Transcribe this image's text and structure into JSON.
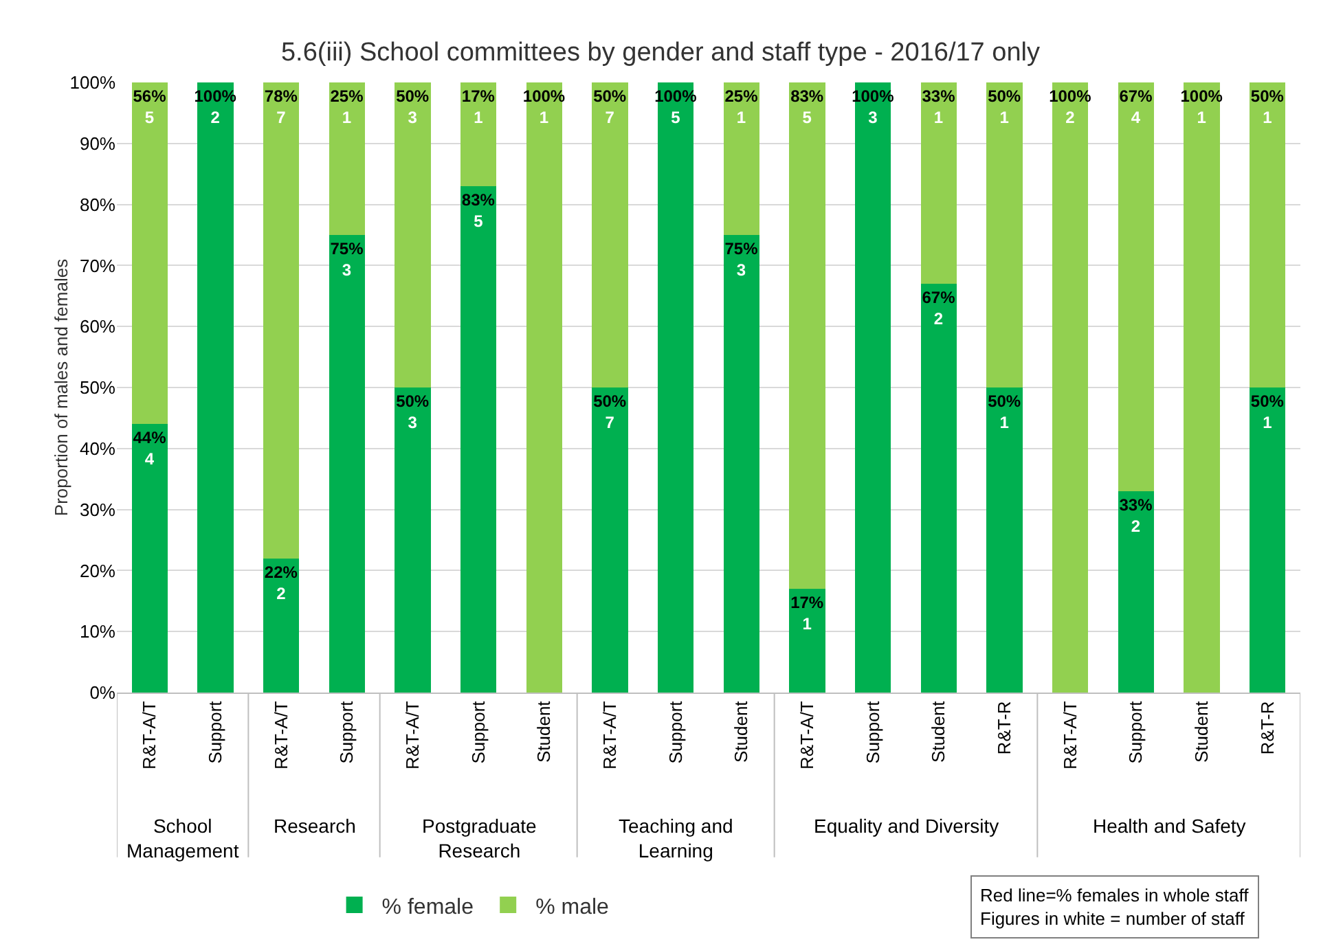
{
  "chart_data": {
    "type": "bar",
    "stacked": true,
    "title": "5.6(iii) School committees by gender and staff type - 2016/17 only",
    "ylabel": "Proportion of males and females",
    "categories": [
      "R&T-A/T",
      "Support",
      "R&T-A/T",
      "Support",
      "R&T-A/T",
      "Support",
      "Student",
      "R&T-A/T",
      "Support",
      "Student",
      "R&T-A/T",
      "Support",
      "Student",
      "R&T-R",
      "R&T-A/T",
      "Support",
      "Student",
      "R&T-R"
    ],
    "series": [
      {
        "name": "% female",
        "color": "#00b050",
        "values": [
          44,
          100,
          22,
          75,
          50,
          83,
          0,
          50,
          100,
          75,
          17,
          100,
          67,
          50,
          0,
          33,
          0,
          50
        ],
        "value_labels": [
          "44%\n4",
          "100%\n2",
          "22%\n2",
          "75%\n3",
          "50%\n3",
          "83%\n5",
          null,
          "50%\n7",
          "100%\n5",
          "75%\n3",
          "17%\n1",
          "100%\n3",
          "67%\n2",
          "50%\n1",
          null,
          "33%\n2",
          null,
          "50%\n1"
        ]
      },
      {
        "name": "% male",
        "color": "#92d050",
        "values": [
          56,
          0,
          78,
          25,
          50,
          17,
          100,
          50,
          0,
          25,
          83,
          0,
          33,
          50,
          100,
          67,
          100,
          50
        ],
        "value_labels": [
          "56%\n5",
          null,
          "78%\n7",
          "25%\n1",
          "50%\n3",
          "17%\n1",
          "100%\n1",
          "50%\n7",
          null,
          "25%\n1",
          "83%\n5",
          null,
          "33%\n1",
          "50%\n1",
          "100%\n2",
          "67%\n4",
          "100%\n1",
          "50%\n1"
        ]
      }
    ],
    "ylim": [
      0,
      100
    ],
    "yticks": [
      {
        "value": 0,
        "label": "0%"
      },
      {
        "value": 10,
        "label": "10%"
      },
      {
        "value": 20,
        "label": "20%"
      },
      {
        "value": 30,
        "label": "30%"
      },
      {
        "value": 40,
        "label": "40%"
      },
      {
        "value": 50,
        "label": "50%"
      },
      {
        "value": 60,
        "label": "60%"
      },
      {
        "value": 70,
        "label": "70%"
      },
      {
        "value": 80,
        "label": "80%"
      },
      {
        "value": 90,
        "label": "90%"
      },
      {
        "value": 100,
        "label": "100%"
      }
    ],
    "grid": "y",
    "legend": "bottom",
    "annotations": [
      "School Management",
      "Research",
      "Postgraduate Research",
      "Teaching and Learning",
      "Equality and Diversity",
      "Health and Safety",
      "Red line=% females in whole staff",
      "Figures in white = number of staff"
    ]
  }
}
